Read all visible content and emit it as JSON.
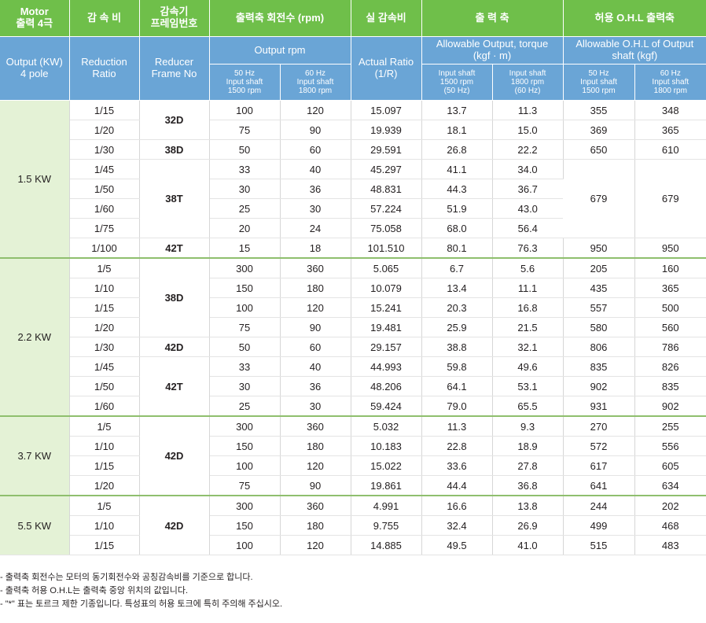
{
  "header_kr": {
    "motor": [
      "Motor",
      "출력 4극"
    ],
    "ratio": "감 속 비",
    "frame": [
      "감속기",
      "프레임번호"
    ],
    "rpm": "출력축 회전수 (rpm)",
    "actual": "실 감속비",
    "output": "출 력 축",
    "ohl": "허용 O.H.L 출력축"
  },
  "header_en": {
    "motor": [
      "Output (KW)",
      "4 pole"
    ],
    "ratio": [
      "Reduction",
      "Ratio"
    ],
    "frame": [
      "Reducer",
      "Frame No"
    ],
    "rpm": "Output rpm",
    "actual": [
      "Actual Ratio",
      "(1/R)"
    ],
    "output": [
      "Allowable Output, torque",
      "(kgf · m)"
    ],
    "ohl": [
      "Allowable O.H.L of Output",
      "shaft (kgf)"
    ]
  },
  "subheaders": {
    "rpm50": [
      "50 Hz",
      "Input shaft",
      "1500 rpm"
    ],
    "rpm60": [
      "60 Hz",
      "Input shaft",
      "1800 rpm"
    ],
    "out50": [
      "Input shaft",
      "1500 rpm",
      "(50 Hz)"
    ],
    "out60": [
      "Input shaft",
      "1800 rpm",
      "(60 Hz)"
    ],
    "ohl50": [
      "50 Hz",
      "Input shaft",
      "1500 rpm"
    ],
    "ohl60": [
      "60 Hz",
      "Input shaft",
      "1800 rpm"
    ]
  },
  "groups": [
    {
      "motor": "1.5 KW",
      "rows": [
        {
          "ratio": "1/15",
          "rpm50": "100",
          "rpm60": "120",
          "actual": "15.097",
          "t50": "13.7",
          "t60": "11.3",
          "o50": "355",
          "o60": "348"
        },
        {
          "ratio": "1/20",
          "rpm50": "75",
          "rpm60": "90",
          "actual": "19.939",
          "t50": "18.1",
          "t60": "15.0",
          "o50": "369",
          "o60": "365"
        },
        {
          "ratio": "1/30",
          "rpm50": "50",
          "rpm60": "60",
          "actual": "29.591",
          "t50": "26.8",
          "t60": "22.2",
          "o50": "650",
          "o60": "610"
        },
        {
          "ratio": "1/45",
          "rpm50": "33",
          "rpm60": "40",
          "actual": "45.297",
          "t50": "41.1",
          "t60": "34.0",
          "o50": "679",
          "o60": "679"
        },
        {
          "ratio": "1/50",
          "rpm50": "30",
          "rpm60": "36",
          "actual": "48.831",
          "t50": "44.3",
          "t60": "36.7"
        },
        {
          "ratio": "1/60",
          "rpm50": "25",
          "rpm60": "30",
          "actual": "57.224",
          "t50": "51.9",
          "t60": "43.0"
        },
        {
          "ratio": "1/75",
          "rpm50": "20",
          "rpm60": "24",
          "actual": "75.058",
          "t50": "68.0",
          "t60": "56.4"
        },
        {
          "ratio": "1/100",
          "rpm50": "15",
          "rpm60": "18",
          "actual": "101.510",
          "t50": "80.1",
          "t60": "76.3",
          "o50": "950",
          "o60": "950"
        }
      ],
      "frames": [
        {
          "label": "32D",
          "start": 0,
          "span": 2
        },
        {
          "label": "38D",
          "start": 2,
          "span": 1
        },
        {
          "label": "38T",
          "start": 3,
          "span": 4
        },
        {
          "label": "42T",
          "start": 7,
          "span": 1
        }
      ],
      "ohl_spans": [
        {
          "start": 3,
          "span": 4
        }
      ]
    },
    {
      "motor": "2.2 KW",
      "rows": [
        {
          "ratio": "1/5",
          "rpm50": "300",
          "rpm60": "360",
          "actual": "5.065",
          "t50": "6.7",
          "t60": "5.6",
          "o50": "205",
          "o60": "160"
        },
        {
          "ratio": "1/10",
          "rpm50": "150",
          "rpm60": "180",
          "actual": "10.079",
          "t50": "13.4",
          "t60": "11.1",
          "o50": "435",
          "o60": "365"
        },
        {
          "ratio": "1/15",
          "rpm50": "100",
          "rpm60": "120",
          "actual": "15.241",
          "t50": "20.3",
          "t60": "16.8",
          "o50": "557",
          "o60": "500"
        },
        {
          "ratio": "1/20",
          "rpm50": "75",
          "rpm60": "90",
          "actual": "19.481",
          "t50": "25.9",
          "t60": "21.5",
          "o50": "580",
          "o60": "560"
        },
        {
          "ratio": "1/30",
          "rpm50": "50",
          "rpm60": "60",
          "actual": "29.157",
          "t50": "38.8",
          "t60": "32.1",
          "o50": "806",
          "o60": "786"
        },
        {
          "ratio": "1/45",
          "rpm50": "33",
          "rpm60": "40",
          "actual": "44.993",
          "t50": "59.8",
          "t60": "49.6",
          "o50": "835",
          "o60": "826"
        },
        {
          "ratio": "1/50",
          "rpm50": "30",
          "rpm60": "36",
          "actual": "48.206",
          "t50": "64.1",
          "t60": "53.1",
          "o50": "902",
          "o60": "835"
        },
        {
          "ratio": "1/60",
          "rpm50": "25",
          "rpm60": "30",
          "actual": "59.424",
          "t50": "79.0",
          "t60": "65.5",
          "o50": "931",
          "o60": "902"
        }
      ],
      "frames": [
        {
          "label": "38D",
          "start": 0,
          "span": 4
        },
        {
          "label": "42D",
          "start": 4,
          "span": 1
        },
        {
          "label": "42T",
          "start": 5,
          "span": 3
        }
      ],
      "ohl_spans": []
    },
    {
      "motor": "3.7 KW",
      "rows": [
        {
          "ratio": "1/5",
          "rpm50": "300",
          "rpm60": "360",
          "actual": "5.032",
          "t50": "11.3",
          "t60": "9.3",
          "o50": "270",
          "o60": "255"
        },
        {
          "ratio": "1/10",
          "rpm50": "150",
          "rpm60": "180",
          "actual": "10.183",
          "t50": "22.8",
          "t60": "18.9",
          "o50": "572",
          "o60": "556"
        },
        {
          "ratio": "1/15",
          "rpm50": "100",
          "rpm60": "120",
          "actual": "15.022",
          "t50": "33.6",
          "t60": "27.8",
          "o50": "617",
          "o60": "605"
        },
        {
          "ratio": "1/20",
          "rpm50": "75",
          "rpm60": "90",
          "actual": "19.861",
          "t50": "44.4",
          "t60": "36.8",
          "o50": "641",
          "o60": "634"
        }
      ],
      "frames": [
        {
          "label": "42D",
          "start": 0,
          "span": 4
        }
      ],
      "ohl_spans": []
    },
    {
      "motor": "5.5 KW",
      "rows": [
        {
          "ratio": "1/5",
          "rpm50": "300",
          "rpm60": "360",
          "actual": "4.991",
          "t50": "16.6",
          "t60": "13.8",
          "o50": "244",
          "o60": "202"
        },
        {
          "ratio": "1/10",
          "rpm50": "150",
          "rpm60": "180",
          "actual": "9.755",
          "t50": "32.4",
          "t60": "26.9",
          "o50": "499",
          "o60": "468"
        },
        {
          "ratio": "1/15",
          "rpm50": "100",
          "rpm60": "120",
          "actual": "14.885",
          "t50": "49.5",
          "t60": "41.0",
          "o50": "515",
          "o60": "483"
        }
      ],
      "frames": [
        {
          "label": "42D",
          "start": 0,
          "span": 3
        }
      ],
      "ohl_spans": []
    }
  ],
  "notes": [
    "- 출력축 회전수는 모터의 동기회전수와 공칭감속비를 기준으로 합니다.",
    "- 출력축 허용 O.H.L는 출력축 중앙 위치의 값입니다.",
    "- \"*\" 표는 토르크 제한 기종입니다. 특성표의 허용 토크에 특히 주의해 주십시오."
  ],
  "colors": {
    "header_korean_bg": "#6fbf4a",
    "header_english_bg": "#6aa5d6",
    "motor_cell_bg": "#e4f2d6",
    "group_separator": "#8fbf6e"
  }
}
